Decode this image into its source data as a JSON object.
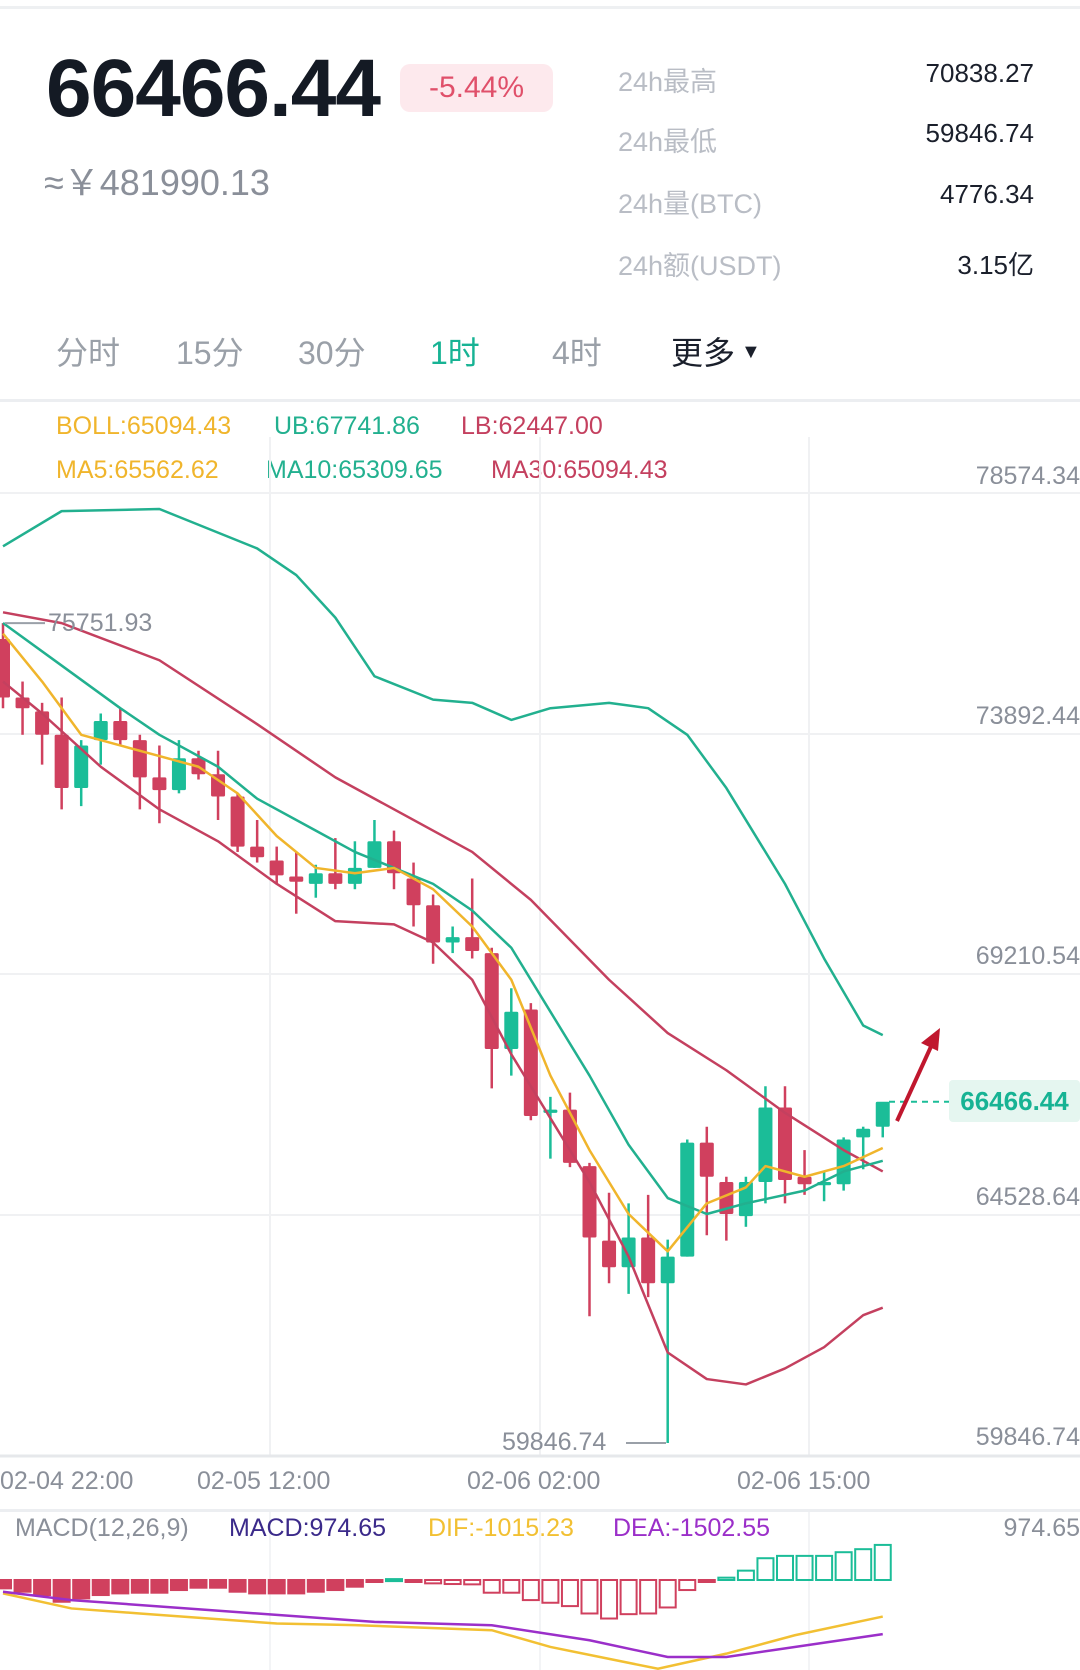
{
  "header": {
    "price": "66466.44",
    "change": "-5.44%",
    "cny_price": "≈￥481990.13",
    "stats": [
      {
        "label": "24h最高",
        "value": "70838.27"
      },
      {
        "label": "24h最低",
        "value": "59846.74"
      },
      {
        "label": "24h量(BTC)",
        "value": "4776.34"
      },
      {
        "label": "24h额(USDT)",
        "value": "3.15亿"
      }
    ]
  },
  "tabs": [
    {
      "label": "分时",
      "active": false
    },
    {
      "label": "15分",
      "active": false
    },
    {
      "label": "30分",
      "active": false
    },
    {
      "label": "1时",
      "active": true
    },
    {
      "label": "4时",
      "active": false
    },
    {
      "label": "更多",
      "active": false,
      "icon": "caret-down-icon"
    }
  ],
  "indicators": {
    "boll": "BOLL:65094.43",
    "ub": "UB:67741.86",
    "lb": "LB:62447.00",
    "ma5": "MA5:65562.62",
    "ma10": "MA10:65309.65",
    "ma30": "MA30:65094.43"
  },
  "colors": {
    "up": "#1bbd98",
    "down": "#d0405e",
    "ma5": "#f0b52c",
    "teal": "#22b08f",
    "red_line": "#c4405f",
    "accent": "#17b394",
    "macd_label": "#3b2a8a",
    "dif": "#f2c033",
    "dea": "#9b2fc9",
    "arrow": "#c0172e"
  },
  "chart_data": [
    {
      "type": "candlestick",
      "y_ticks": [
        "78574.34",
        "73892.44",
        "69210.54",
        "64528.64",
        "59846.74"
      ],
      "x_ticks": [
        "02-04 22:00",
        "02-05 12:00",
        "02-06 02:00",
        "02-06 15:00"
      ],
      "ylim": [
        59846.74,
        78574.34
      ],
      "grid": true,
      "high_marker": "75751.93",
      "low_marker": "59846.74",
      "current_price": "66466.44",
      "candles_ohlc": [
        [
          75445,
          75751.93,
          74102,
          74309
        ],
        [
          74309,
          74619,
          73586,
          74102
        ],
        [
          74040,
          74206,
          73007,
          73586
        ],
        [
          73586,
          74309,
          72140,
          72553
        ],
        [
          72553,
          73483,
          72202,
          73379
        ],
        [
          73483,
          73999,
          73007,
          73854
        ],
        [
          73854,
          74102,
          73379,
          73483
        ],
        [
          73483,
          73586,
          72140,
          72760
        ],
        [
          72760,
          73379,
          71871,
          72512
        ],
        [
          72512,
          73483,
          72450,
          73131
        ],
        [
          73131,
          73276,
          72718,
          72821
        ],
        [
          72821,
          73276,
          71933,
          72388
        ],
        [
          72388,
          72450,
          71313,
          71417
        ],
        [
          71417,
          71933,
          71107,
          71210
        ],
        [
          71148,
          71417,
          70694,
          70859
        ],
        [
          70838,
          71313,
          70115,
          70735
        ],
        [
          70694,
          71065,
          70425,
          70900
        ],
        [
          70900,
          71582,
          70590,
          70694
        ],
        [
          70694,
          71520,
          70590,
          71003
        ],
        [
          71003,
          71933,
          71003,
          71520
        ],
        [
          71520,
          71727,
          70590,
          70900
        ],
        [
          70797,
          71107,
          69867,
          70280
        ],
        [
          70280,
          70487,
          69144,
          69557
        ],
        [
          69557,
          69867,
          69351,
          69661
        ],
        [
          69661,
          70797,
          69247,
          69392
        ],
        [
          69351,
          69454,
          66727,
          67491
        ],
        [
          67491,
          68669,
          66975,
          68214
        ],
        [
          68256,
          68380,
          66107,
          66190
        ],
        [
          66252,
          66562,
          65363,
          66314
        ],
        [
          66314,
          66644,
          65198,
          65281
        ],
        [
          65219,
          65281,
          62306,
          63834
        ],
        [
          63772,
          64702,
          62946,
          63256
        ],
        [
          63256,
          64496,
          62739,
          63834
        ],
        [
          63834,
          64661,
          62677,
          62946
        ],
        [
          62946,
          63793,
          59846.74,
          63463
        ],
        [
          63463,
          65735,
          63463,
          65673
        ],
        [
          65673,
          65983,
          63876,
          65012
        ],
        [
          64909,
          65012,
          63772,
          64289
        ],
        [
          64248,
          65012,
          64041,
          64909
        ],
        [
          64909,
          66768,
          64496,
          66355
        ],
        [
          66355,
          66768,
          64496,
          64950
        ],
        [
          65012,
          65529,
          64661,
          64867
        ],
        [
          64847,
          65115,
          64537,
          64909
        ],
        [
          64867,
          65776,
          64743,
          65735
        ],
        [
          65776,
          65983,
          65157,
          65942
        ],
        [
          65983,
          66148,
          65776,
          66466.44
        ]
      ],
      "lines": {
        "ub": [
          [
            0,
            77243
          ],
          [
            3,
            77925
          ],
          [
            8,
            77966
          ],
          [
            13,
            77201
          ],
          [
            15,
            76685
          ],
          [
            17,
            75859
          ],
          [
            19,
            74722
          ],
          [
            22,
            74268
          ],
          [
            24,
            74206
          ],
          [
            26,
            73875
          ],
          [
            28,
            74102
          ],
          [
            31,
            74206
          ],
          [
            33,
            74102
          ],
          [
            35,
            73586
          ],
          [
            37,
            72553
          ],
          [
            40,
            70694
          ],
          [
            42,
            69247
          ],
          [
            44,
            67946
          ],
          [
            45,
            67760
          ]
        ],
        "ma30": [
          [
            0,
            75962
          ],
          [
            3,
            75752
          ],
          [
            8,
            75032
          ],
          [
            13,
            73792
          ],
          [
            17,
            72760
          ],
          [
            20,
            72140
          ],
          [
            24,
            71313
          ],
          [
            27,
            70383
          ],
          [
            31,
            68834
          ],
          [
            34,
            67800
          ],
          [
            37,
            67078
          ],
          [
            40,
            66252
          ],
          [
            43,
            65529
          ],
          [
            45,
            65115
          ]
        ],
        "ma10": [
          [
            0,
            75755
          ],
          [
            3,
            74929
          ],
          [
            6,
            74102
          ],
          [
            8,
            73586
          ],
          [
            11,
            72966
          ],
          [
            13,
            72346
          ],
          [
            16,
            71727
          ],
          [
            18,
            71313
          ],
          [
            20,
            71003
          ],
          [
            22,
            70694
          ],
          [
            24,
            70177
          ],
          [
            26,
            69454
          ],
          [
            28,
            68214
          ],
          [
            30,
            66975
          ],
          [
            32,
            65632
          ],
          [
            34,
            64599
          ],
          [
            36,
            64289
          ],
          [
            38,
            64496
          ],
          [
            41,
            64743
          ],
          [
            43,
            65115
          ],
          [
            45,
            65322
          ]
        ],
        "ma5": [
          [
            0,
            75549
          ],
          [
            2,
            74619
          ],
          [
            4,
            73586
          ],
          [
            6,
            73379
          ],
          [
            8,
            73173
          ],
          [
            10,
            72966
          ],
          [
            12,
            72450
          ],
          [
            14,
            71623
          ],
          [
            16,
            71003
          ],
          [
            18,
            70900
          ],
          [
            20,
            71003
          ],
          [
            22,
            70590
          ],
          [
            24,
            69867
          ],
          [
            26,
            68834
          ],
          [
            28,
            66975
          ],
          [
            30,
            65529
          ],
          [
            32,
            64289
          ],
          [
            34,
            63566
          ],
          [
            36,
            64496
          ],
          [
            38,
            64805
          ],
          [
            39,
            65219
          ],
          [
            41,
            65012
          ],
          [
            43,
            65219
          ],
          [
            45,
            65570
          ]
        ],
        "lb": [
          [
            0,
            74619
          ],
          [
            2,
            73999
          ],
          [
            5,
            72966
          ],
          [
            8,
            72140
          ],
          [
            11,
            71520
          ],
          [
            14,
            70694
          ],
          [
            17,
            69970
          ],
          [
            20,
            69908
          ],
          [
            22,
            69557
          ],
          [
            24,
            68834
          ],
          [
            26,
            67388
          ],
          [
            28,
            66148
          ],
          [
            30,
            64909
          ],
          [
            32,
            63463
          ],
          [
            34,
            61603
          ],
          [
            36,
            61087
          ],
          [
            38,
            60983
          ],
          [
            40,
            61293
          ],
          [
            42,
            61706
          ],
          [
            44,
            62326
          ],
          [
            45,
            62471
          ]
        ]
      }
    },
    {
      "type": "bar",
      "title": "MACD(12,26,9)",
      "macd_label": "MACD:974.65",
      "dif_label": "DIF:-1015.23",
      "dea_label": "DEA:-1502.55",
      "y_tick": "974.65",
      "histogram": [
        -232,
        -325,
        -418,
        -604,
        -511,
        -418,
        -372,
        -353,
        -353,
        -279,
        -214,
        -214,
        -325,
        -372,
        -372,
        -372,
        -325,
        -279,
        -186,
        -28,
        25,
        -46,
        -93,
        -112,
        -121,
        -353,
        -353,
        -558,
        -632,
        -725,
        -930,
        -1070,
        -949,
        -930,
        -763,
        -279,
        -46,
        65,
        260,
        605,
        670,
        670,
        670,
        772,
        856,
        974.65
      ],
      "dif": [
        [
          0,
          -372
        ],
        [
          3.5,
          -790
        ],
        [
          7,
          -930
        ],
        [
          14,
          -1209
        ],
        [
          18,
          -1255
        ],
        [
          25,
          -1395
        ],
        [
          28,
          -1860
        ],
        [
          33.5,
          -2465
        ],
        [
          37,
          -2046
        ],
        [
          40.5,
          -1535
        ],
        [
          45,
          -1015.23
        ]
      ],
      "dea": [
        [
          0,
          -325
        ],
        [
          3.5,
          -558
        ],
        [
          10.6,
          -837
        ],
        [
          19,
          -1163
        ],
        [
          25,
          -1256
        ],
        [
          30,
          -1674
        ],
        [
          34,
          -2139
        ],
        [
          37,
          -2139
        ],
        [
          45,
          -1502.55
        ]
      ]
    }
  ]
}
